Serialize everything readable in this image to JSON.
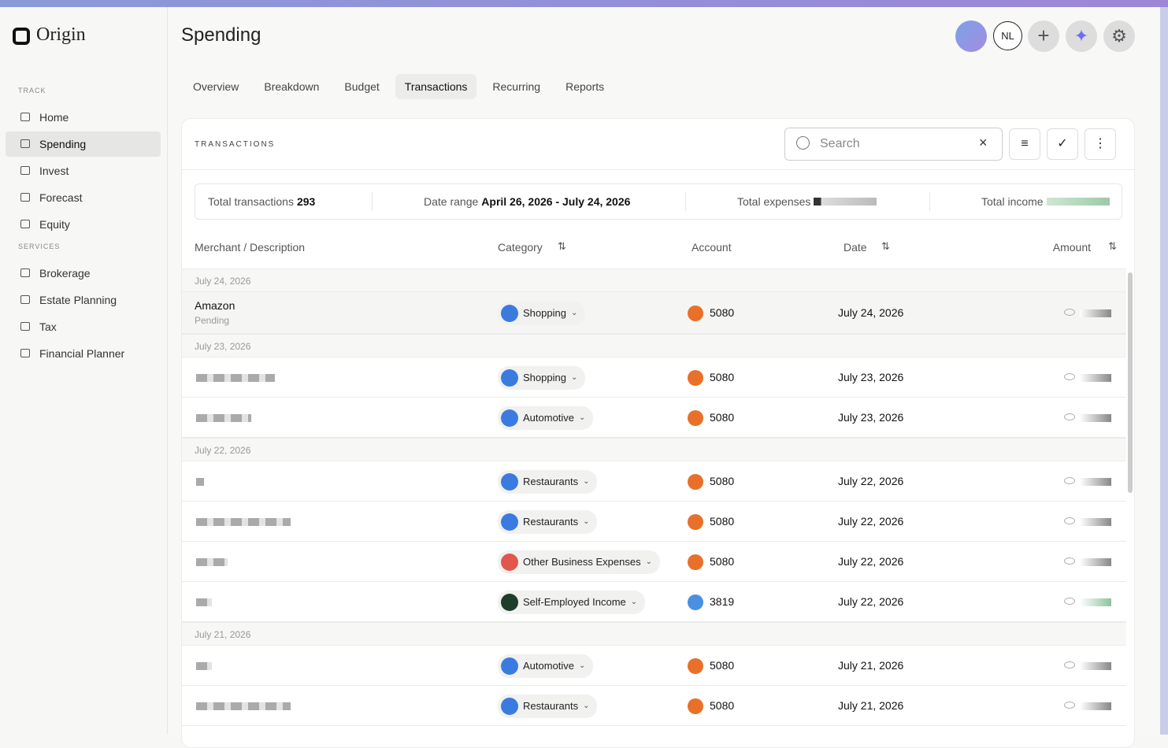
{
  "brand": "Origin",
  "nav": {
    "sections": [
      {
        "label": "TRACK",
        "items": [
          "Home",
          "Spending",
          "Invest",
          "Forecast",
          "Equity"
        ]
      },
      {
        "label": "SERVICES",
        "items": [
          "Brokerage",
          "Estate Planning",
          "Tax",
          "Financial Planner"
        ]
      }
    ]
  },
  "header": {
    "title": "Spending",
    "avatar": "NL"
  },
  "tabs": [
    "Overview",
    "Breakdown",
    "Budget",
    "Transactions",
    "Recurring",
    "Reports"
  ],
  "panel": {
    "title": "TRANSACTIONS",
    "search_placeholder": "Search",
    "summary": [
      {
        "label": "Total transactions",
        "value": "293"
      },
      {
        "label": "Date range",
        "value": "April 26, 2026 - July 24, 2026"
      },
      {
        "label": "Total expenses"
      },
      {
        "label": "Total income"
      }
    ],
    "columns": [
      "Merchant / Description",
      "Category",
      "Account",
      "Date",
      "Amount"
    ],
    "groups": [
      {
        "date": "July 24, 2026",
        "rows": [
          {
            "merchant": "Amazon",
            "status": "Pending",
            "category": "Shopping",
            "account": "5080",
            "date": "July 24, 2026"
          }
        ]
      },
      {
        "date": "July 23, 2026",
        "rows": [
          {
            "category": "Shopping",
            "account": "5080",
            "date": "July 23, 2026"
          },
          {
            "category": "Automotive",
            "account": "5080",
            "date": "July 23, 2026"
          }
        ]
      },
      {
        "date": "July 22, 2026",
        "rows": [
          {
            "category": "Restaurants",
            "account": "5080",
            "date": "July 22, 2026"
          },
          {
            "category": "Restaurants",
            "account": "5080",
            "date": "July 22, 2026"
          },
          {
            "category": "Other Business Expenses",
            "account": "5080",
            "date": "July 22, 2026"
          },
          {
            "category": "Self-Employed Income",
            "account": "3819",
            "date": "July 22, 2026"
          }
        ]
      },
      {
        "date": "July 21, 2026",
        "rows": [
          {
            "category": "Automotive",
            "account": "5080",
            "date": "July 21, 2026"
          },
          {
            "category": "Restaurants",
            "account": "5080",
            "date": "July 21, 2026"
          }
        ]
      }
    ]
  }
}
